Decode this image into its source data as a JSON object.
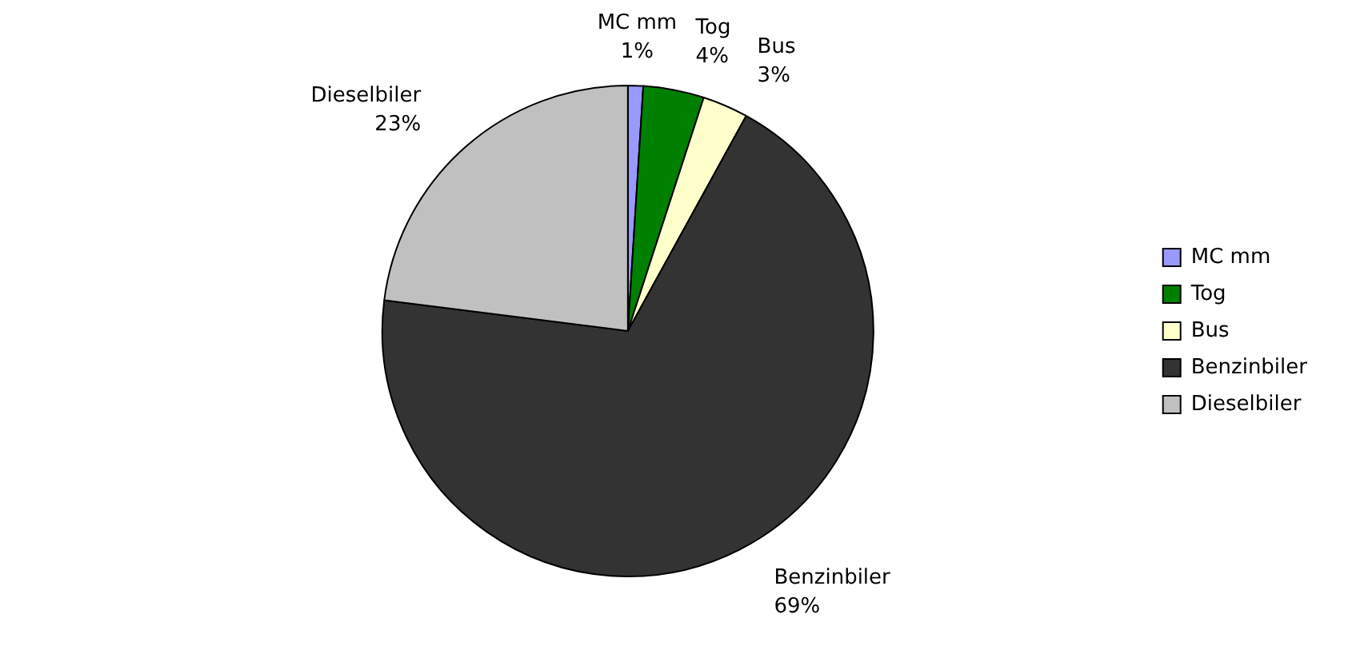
{
  "chart_data": {
    "type": "pie",
    "categories": [
      "MC mm",
      "Tog",
      "Bus",
      "Benzinbiler",
      "Dieselbiler"
    ],
    "values": [
      1,
      4,
      3,
      69,
      23
    ],
    "colors": [
      "#9999ff",
      "#008000",
      "#ffffcc",
      "#333333",
      "#c0c0c0"
    ],
    "value_labels": [
      "1%",
      "4%",
      "3%",
      "69%",
      "23%"
    ],
    "legend": "right"
  }
}
